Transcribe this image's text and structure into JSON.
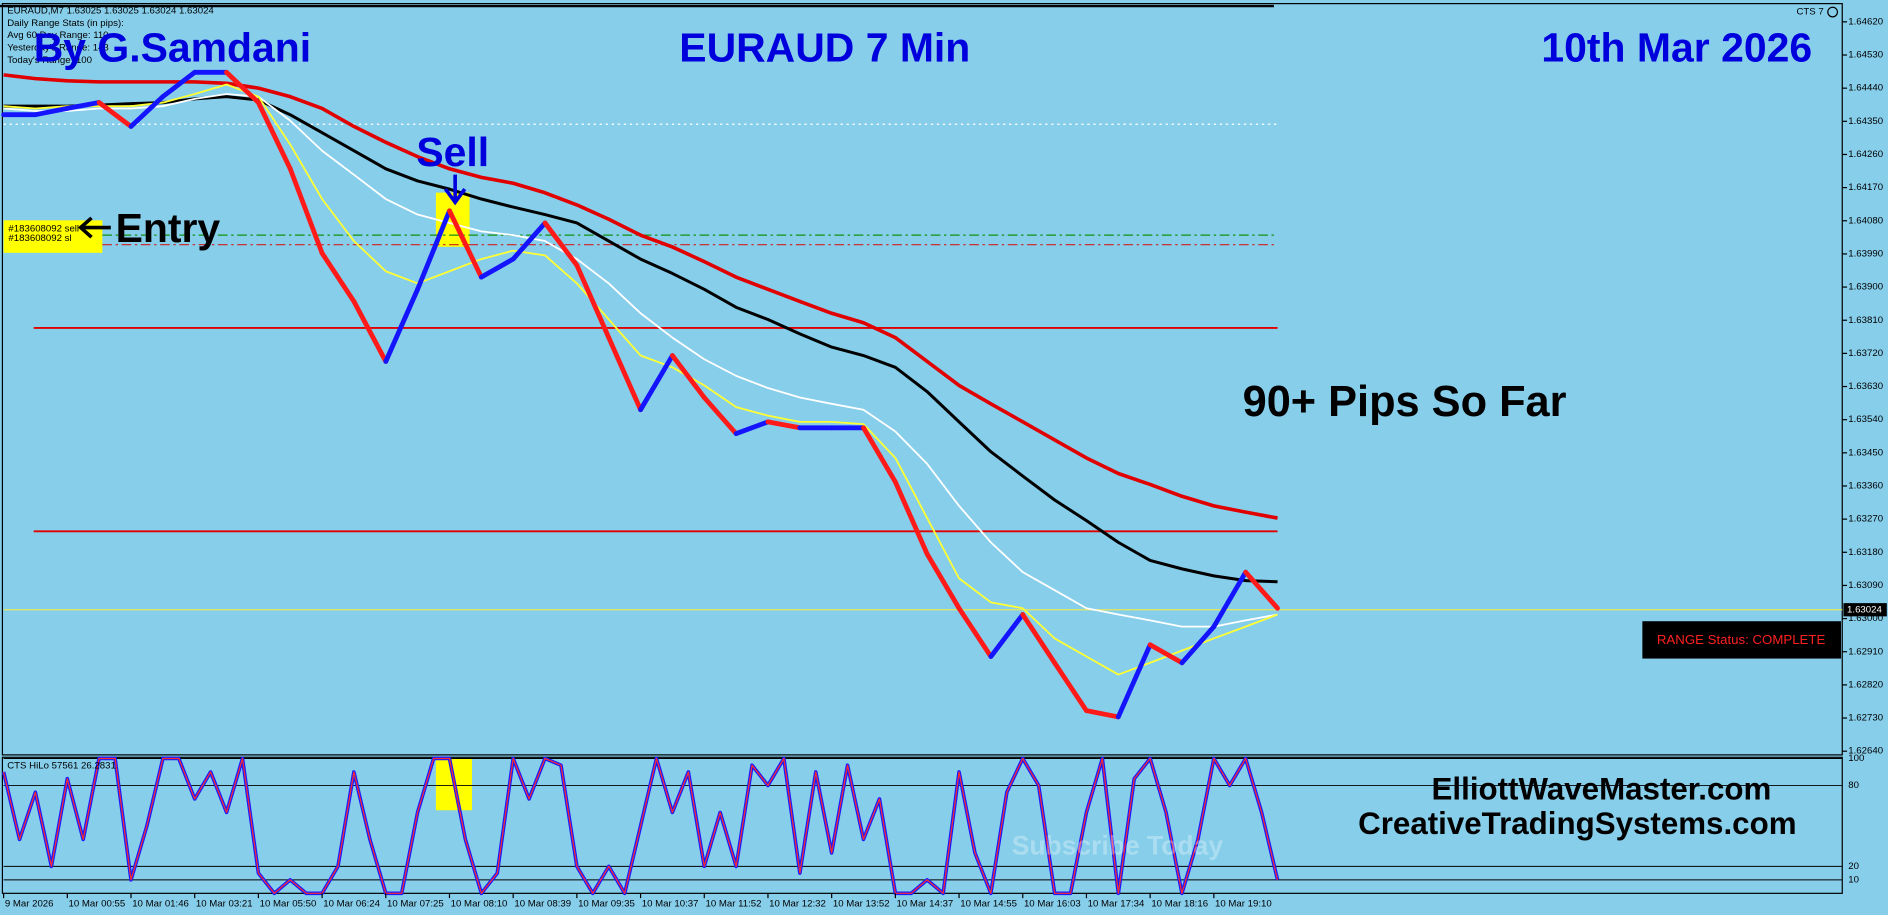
{
  "chart_data": [
    {
      "type": "line",
      "title": "EURAUD 7 Min",
      "author": "By G.Samdani",
      "date": "10th Mar 2026",
      "sell_label": "Sell",
      "entry_label": "Entry",
      "result": "90+ Pips So Far",
      "websites": [
        "ElliottWaveMaster.com",
        "CreativeTradingSystems.com"
      ],
      "watermark": "Subscribe Today",
      "info_lines": [
        "EURAUD,M7  1.63025 1.63025 1.63024 1.63024",
        "Daily Range Stats (in pips):",
        "Avg 60 Day Range: 110",
        "Yesterday's Range: 143",
        "Today's Range: 100"
      ],
      "indicator_name": "CTS 7",
      "range_status": "RANGE Status: COMPLETE",
      "grid": false,
      "ylim": [
        1.6263,
        1.64663
      ],
      "yticks": [
        {
          "value": 1.6462,
          "label": "1.64620"
        },
        {
          "value": 1.6453,
          "label": "1.64530"
        },
        {
          "value": 1.6444,
          "label": "1.64440"
        },
        {
          "value": 1.6435,
          "label": "1.64350"
        },
        {
          "value": 1.6426,
          "label": "1.64260"
        },
        {
          "value": 1.6417,
          "label": "1.64170"
        },
        {
          "value": 1.6408,
          "label": "1.64080"
        },
        {
          "value": 1.6399,
          "label": "1.63990"
        },
        {
          "value": 1.639,
          "label": "1.63900"
        },
        {
          "value": 1.6381,
          "label": "1.63810"
        },
        {
          "value": 1.6372,
          "label": "1.63720"
        },
        {
          "value": 1.6363,
          "label": "1.63630"
        },
        {
          "value": 1.6354,
          "label": "1.63540"
        },
        {
          "value": 1.6345,
          "label": "1.63450"
        },
        {
          "value": 1.6336,
          "label": "1.63360"
        },
        {
          "value": 1.6327,
          "label": "1.63270"
        },
        {
          "value": 1.6318,
          "label": "1.63180"
        },
        {
          "value": 1.6309,
          "label": "1.63090"
        },
        {
          "value": 1.63,
          "label": "1.63000"
        },
        {
          "value": 1.6291,
          "label": "1.62910"
        },
        {
          "value": 1.6282,
          "label": "1.62820"
        },
        {
          "value": 1.6273,
          "label": "1.62730"
        },
        {
          "value": 1.6264,
          "label": "1.62640"
        }
      ],
      "current_price": 1.63024,
      "current_price_color": "#e6e65a",
      "levels": [
        {
          "value": 1.64342,
          "color": "#ffffff",
          "style": "dotted"
        },
        {
          "value": 1.64041,
          "color": "#109010",
          "style": "dashdot",
          "label": "#183608092 sell"
        },
        {
          "value": 1.64015,
          "color": "#d02020",
          "style": "dashdot",
          "label": "#183608092 sl"
        },
        {
          "value": 1.63789,
          "color": "#e00000",
          "style": "solid"
        },
        {
          "value": 1.63237,
          "color": "#e00000",
          "style": "solid"
        }
      ],
      "categories": [
        "9 Mar 2026",
        null,
        "10 Mar 00:55",
        null,
        "10 Mar 01:46",
        null,
        "10 Mar 03:21",
        null,
        "10 Mar 05:50",
        null,
        "10 Mar 06:24",
        null,
        "10 Mar 07:25",
        null,
        "10 Mar 08:10",
        null,
        "10 Mar 08:39",
        null,
        "10 Mar 09:35",
        null,
        "10 Mar 10:37",
        null,
        "10 Mar 11:52",
        null,
        "10 Mar 12:32",
        null,
        "10 Mar 13:52",
        null,
        "10 Mar 14:37",
        null,
        "10 Mar 14:55",
        null,
        "10 Mar 16:03",
        null,
        "10 Mar 17:34",
        null,
        "10 Mar 18:16",
        null,
        "10 Mar 19:10",
        null,
        null
      ],
      "series": [
        {
          "up_color": "#1414ff",
          "down_color": "#ff1a1a",
          "values": [
            1.64368,
            1.64368,
            1.64385,
            1.64401,
            1.64336,
            1.64417,
            1.64483,
            1.64483,
            1.64401,
            1.64221,
            1.63992,
            1.63861,
            1.63698,
            1.63894,
            1.64107,
            1.63927,
            1.63976,
            1.64074,
            1.63959,
            1.63763,
            1.63567,
            1.63714,
            1.636,
            1.63502,
            1.63534,
            1.63518,
            1.63518,
            1.63518,
            1.63371,
            1.63175,
            1.63028,
            1.62897,
            1.63011,
            1.6288,
            1.6275,
            1.62733,
            1.62929,
            1.6288,
            1.62978,
            1.63126,
            1.63028
          ]
        },
        {
          "color": "#e00000",
          "values": [
            1.64476,
            1.64466,
            1.6446,
            1.64457,
            1.64457,
            1.64457,
            1.64457,
            1.64453,
            1.6444,
            1.64417,
            1.64385,
            1.64336,
            1.64293,
            1.64254,
            1.64221,
            1.64198,
            1.64182,
            1.64156,
            1.64123,
            1.64084,
            1.64041,
            1.64009,
            1.63969,
            1.63927,
            1.63894,
            1.63861,
            1.63829,
            1.63803,
            1.63763,
            1.63698,
            1.63633,
            1.63583,
            1.63534,
            1.63485,
            1.63436,
            1.63394,
            1.63364,
            1.63332,
            1.63306,
            1.63289,
            1.63273
          ]
        },
        {
          "color": "#000000",
          "values": [
            1.64391,
            1.64391,
            1.64391,
            1.64394,
            1.64398,
            1.64401,
            1.64411,
            1.64417,
            1.64408,
            1.64368,
            1.64319,
            1.6427,
            1.64221,
            1.64188,
            1.64166,
            1.64139,
            1.64117,
            1.64097,
            1.64074,
            1.64025,
            1.63976,
            1.63937,
            1.63894,
            1.63845,
            1.63812,
            1.63773,
            1.63737,
            1.63714,
            1.63682,
            1.63616,
            1.63534,
            1.63453,
            1.63387,
            1.63322,
            1.63266,
            1.63207,
            1.63158,
            1.63135,
            1.63116,
            1.63103,
            1.631
          ]
        },
        {
          "color": "#ffffff",
          "values": [
            1.64385,
            1.64378,
            1.64378,
            1.64385,
            1.64385,
            1.64391,
            1.64411,
            1.64424,
            1.64417,
            1.64352,
            1.6427,
            1.64205,
            1.64139,
            1.64097,
            1.64074,
            1.64051,
            1.64041,
            1.64025,
            1.63976,
            1.6391,
            1.63829,
            1.63763,
            1.63704,
            1.63659,
            1.63626,
            1.636,
            1.63583,
            1.63567,
            1.63508,
            1.6342,
            1.63306,
            1.63207,
            1.63126,
            1.63077,
            1.63028,
            1.63011,
            1.62995,
            1.62978,
            1.62978,
            1.62995,
            1.63011
          ]
        },
        {
          "color": "#ffff33",
          "values": [
            1.64391,
            1.64385,
            1.64391,
            1.64391,
            1.64391,
            1.64401,
            1.64424,
            1.6445,
            1.64417,
            1.64287,
            1.64139,
            1.64025,
            1.63943,
            1.6391,
            1.63943,
            1.63976,
            1.63999,
            1.63986,
            1.6391,
            1.63812,
            1.63714,
            1.63682,
            1.63633,
            1.63574,
            1.63551,
            1.63534,
            1.63534,
            1.63528,
            1.63436,
            1.63273,
            1.63109,
            1.63044,
            1.63028,
            1.62946,
            1.62897,
            1.62848,
            1.6288,
            1.62913,
            1.62946,
            1.62978,
            1.63011
          ]
        }
      ]
    },
    {
      "type": "line",
      "title": "CTS HiLo 57561 26.2831",
      "ylim": [
        0,
        100
      ],
      "yticks": [
        100,
        80,
        20,
        10
      ],
      "color": "#1a1aff",
      "overlay_color": "#ff2a2a",
      "values": [
        90,
        40,
        75,
        20,
        85,
        40,
        100,
        100,
        10,
        50,
        100,
        100,
        70,
        90,
        60,
        100,
        15,
        0,
        10,
        0,
        0,
        20,
        90,
        40,
        0,
        0,
        60,
        100,
        100,
        40,
        0,
        15,
        100,
        70,
        100,
        95,
        20,
        0,
        20,
        0,
        50,
        100,
        60,
        90,
        20,
        60,
        20,
        95,
        80,
        100,
        15,
        90,
        30,
        95,
        40,
        70,
        0,
        0,
        10,
        0,
        90,
        30,
        0,
        75,
        100,
        80,
        0,
        0,
        60,
        100,
        0,
        85,
        100,
        60,
        0,
        40,
        100,
        80,
        100,
        60,
        10
      ]
    }
  ]
}
